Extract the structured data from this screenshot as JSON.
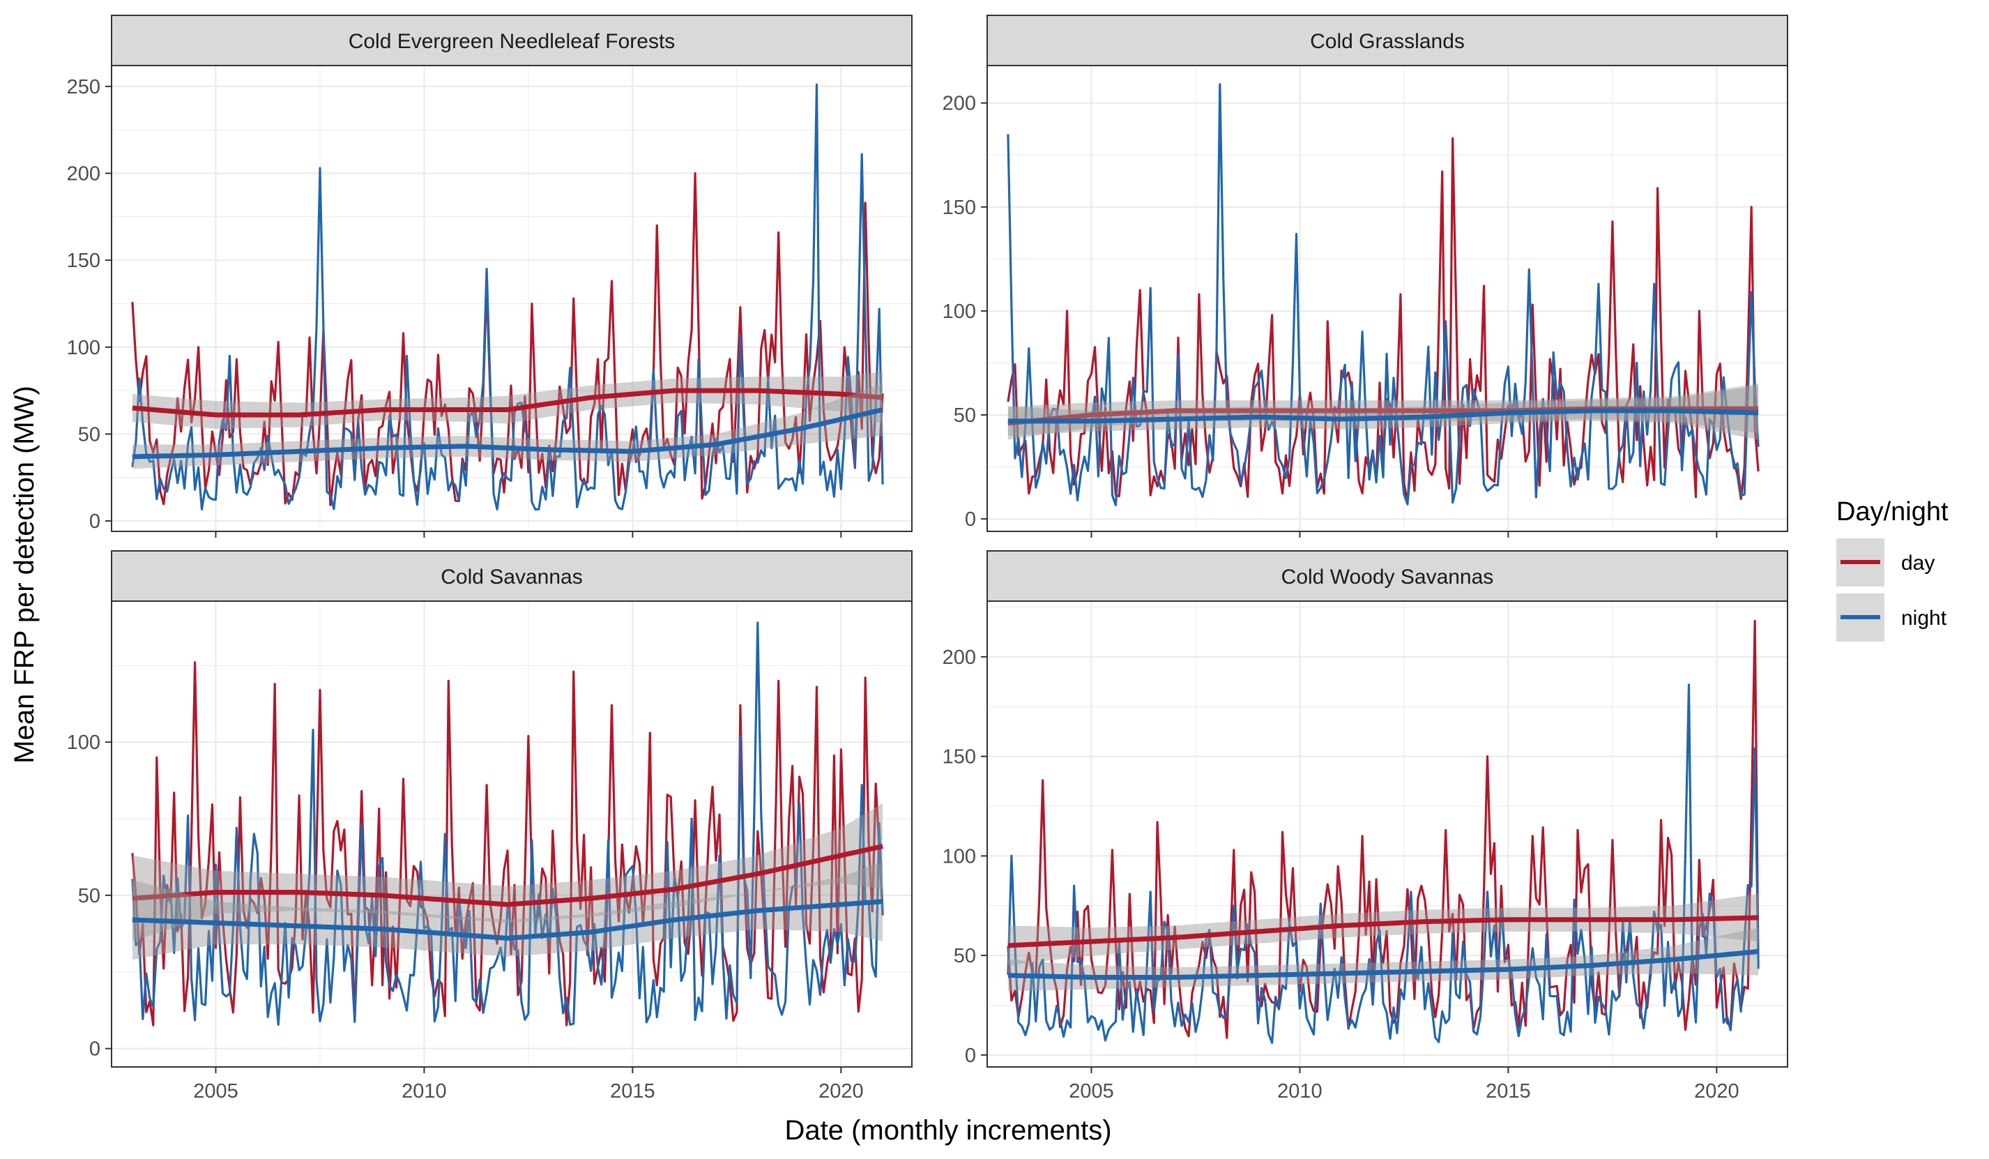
{
  "chart_data": {
    "type": "line",
    "xlabel": "Date (monthly increments)",
    "ylabel": "Mean FRP per detection (MW)",
    "x_ticks": [
      2005,
      2010,
      2015,
      2020
    ],
    "xlim": [
      2002.5,
      2021.7
    ],
    "legend": {
      "title": "Day/night",
      "position": "right",
      "entries": [
        {
          "label": "day",
          "color": "#B2182B"
        },
        {
          "label": "night",
          "color": "#2166AC"
        }
      ]
    },
    "colors": {
      "day": "#B2182B",
      "night": "#2166AC",
      "band": "#999999",
      "strip": "#d9d9d9"
    },
    "grid": true,
    "panels": [
      {
        "title": "Cold Evergreen Needleleaf Forests",
        "ylim": [
          -6,
          262
        ],
        "y_ticks": [
          0,
          50,
          100,
          150,
          200,
          250
        ],
        "series": [
          {
            "name": "day",
            "peaks": [
              [
                2003.0,
                126
              ],
              [
                2004.6,
                100
              ],
              [
                2005.5,
                93
              ],
              [
                2006.5,
                103
              ],
              [
                2007.6,
                110
              ],
              [
                2009.5,
                108
              ],
              [
                2011.5,
                135
              ],
              [
                2012.6,
                125
              ],
              [
                2013.6,
                128
              ],
              [
                2014.5,
                138
              ],
              [
                2015.6,
                170
              ],
              [
                2016.5,
                200
              ],
              [
                2017.6,
                123
              ],
              [
                2018.5,
                166
              ],
              [
                2019.5,
                115
              ],
              [
                2020.6,
                183
              ]
            ],
            "smooth": [
              [
                2003.0,
                65
              ],
              [
                2005.0,
                61
              ],
              [
                2007.0,
                61
              ],
              [
                2009.0,
                64
              ],
              [
                2011.0,
                64
              ],
              [
                2012.0,
                64
              ],
              [
                2014.0,
                71
              ],
              [
                2016.0,
                75
              ],
              [
                2018.0,
                75
              ],
              [
                2020.0,
                73
              ],
              [
                2021.0,
                71
              ]
            ],
            "band": [
              8,
              8,
              7,
              6,
              7,
              8,
              7,
              7,
              8,
              10,
              15
            ]
          },
          {
            "name": "night",
            "peaks": [
              [
                2003.2,
                82
              ],
              [
                2005.3,
                95
              ],
              [
                2007.5,
                203
              ],
              [
                2009.6,
                95
              ],
              [
                2011.5,
                145
              ],
              [
                2013.5,
                88
              ],
              [
                2015.5,
                87
              ],
              [
                2016.6,
                93
              ],
              [
                2017.6,
                107
              ],
              [
                2019.4,
                251
              ],
              [
                2020.5,
                211
              ],
              [
                2020.9,
                122
              ]
            ],
            "smooth": [
              [
                2003.0,
                37
              ],
              [
                2005.0,
                38
              ],
              [
                2007.0,
                40
              ],
              [
                2009.0,
                42
              ],
              [
                2011.0,
                43
              ],
              [
                2013.0,
                41
              ],
              [
                2015.0,
                40
              ],
              [
                2017.0,
                44
              ],
              [
                2019.0,
                53
              ],
              [
                2021.0,
                64
              ]
            ],
            "band": [
              7,
              6,
              6,
              6,
              6,
              6,
              6,
              6,
              9,
              15
            ]
          }
        ]
      },
      {
        "title": "Cold Grasslands",
        "ylim": [
          -6,
          218
        ],
        "y_ticks": [
          0,
          50,
          100,
          150,
          200
        ],
        "series": [
          {
            "name": "day",
            "peaks": [
              [
                2004.4,
                100
              ],
              [
                2006.2,
                110
              ],
              [
                2007.6,
                108
              ],
              [
                2009.3,
                98
              ],
              [
                2010.7,
                95
              ],
              [
                2012.4,
                108
              ],
              [
                2013.4,
                167
              ],
              [
                2013.7,
                183
              ],
              [
                2014.4,
                112
              ],
              [
                2015.6,
                103
              ],
              [
                2017.5,
                143
              ],
              [
                2018.6,
                159
              ],
              [
                2019.6,
                100
              ],
              [
                2020.8,
                150
              ]
            ],
            "smooth": [
              [
                2003.0,
                46
              ],
              [
                2005.0,
                50
              ],
              [
                2007.0,
                52
              ],
              [
                2009.0,
                52
              ],
              [
                2011.0,
                52
              ],
              [
                2013.0,
                52
              ],
              [
                2015.0,
                52
              ],
              [
                2017.0,
                53
              ],
              [
                2019.0,
                53
              ],
              [
                2021.0,
                53
              ]
            ],
            "band": [
              8,
              6,
              5,
              5,
              5,
              5,
              5,
              5,
              6,
              12
            ]
          },
          {
            "name": "night",
            "peaks": [
              [
                2003.0,
                185
              ],
              [
                2003.5,
                82
              ],
              [
                2005.4,
                87
              ],
              [
                2006.4,
                111
              ],
              [
                2008.1,
                209
              ],
              [
                2009.9,
                137
              ],
              [
                2011.5,
                90
              ],
              [
                2013.5,
                95
              ],
              [
                2015.5,
                120
              ],
              [
                2017.2,
                113
              ],
              [
                2018.5,
                113
              ],
              [
                2020.8,
                109
              ]
            ],
            "smooth": [
              [
                2003.0,
                47
              ],
              [
                2005.0,
                47
              ],
              [
                2007.0,
                48
              ],
              [
                2009.0,
                49
              ],
              [
                2011.0,
                48
              ],
              [
                2013.0,
                49
              ],
              [
                2015.0,
                51
              ],
              [
                2017.0,
                52
              ],
              [
                2019.0,
                52
              ],
              [
                2021.0,
                51
              ]
            ],
            "band": [
              7,
              5,
              5,
              5,
              5,
              5,
              5,
              5,
              6,
              13
            ]
          }
        ]
      },
      {
        "title": "Cold Savannas",
        "ylim": [
          -6,
          146
        ],
        "y_ticks": [
          0,
          50,
          100
        ],
        "series": [
          {
            "name": "day",
            "peaks": [
              [
                2003.6,
                95
              ],
              [
                2004.5,
                126
              ],
              [
                2005.6,
                82
              ],
              [
                2006.4,
                119
              ],
              [
                2007.5,
                117
              ],
              [
                2008.5,
                84
              ],
              [
                2009.5,
                88
              ],
              [
                2010.6,
                120
              ],
              [
                2011.5,
                86
              ],
              [
                2012.5,
                102
              ],
              [
                2013.6,
                123
              ],
              [
                2014.5,
                112
              ],
              [
                2015.4,
                103
              ],
              [
                2016.5,
                81
              ],
              [
                2017.6,
                112
              ],
              [
                2018.5,
                120
              ],
              [
                2019.4,
                118
              ],
              [
                2020.6,
                121
              ]
            ],
            "smooth": [
              [
                2003.0,
                49
              ],
              [
                2005.0,
                51
              ],
              [
                2007.0,
                51
              ],
              [
                2009.0,
                50
              ],
              [
                2011.0,
                48
              ],
              [
                2012.0,
                47
              ],
              [
                2014.0,
                49
              ],
              [
                2016.0,
                52
              ],
              [
                2018.0,
                57
              ],
              [
                2020.0,
                63
              ],
              [
                2021.0,
                66
              ]
            ],
            "band": [
              14,
              7,
              6,
              6,
              6,
              6,
              6,
              6,
              6,
              9,
              14
            ]
          },
          {
            "name": "night",
            "peaks": [
              [
                2004.3,
                76
              ],
              [
                2005.5,
                72
              ],
              [
                2007.3,
                104
              ],
              [
                2008.5,
                73
              ],
              [
                2010.5,
                70
              ],
              [
                2012.6,
                68
              ],
              [
                2014.4,
                68
              ],
              [
                2016.4,
                75
              ],
              [
                2017.6,
                102
              ],
              [
                2018.0,
                139
              ],
              [
                2019.0,
                80
              ],
              [
                2020.5,
                86
              ]
            ],
            "smooth": [
              [
                2003.0,
                42
              ],
              [
                2005.0,
                41
              ],
              [
                2007.0,
                40
              ],
              [
                2009.0,
                39
              ],
              [
                2011.0,
                37
              ],
              [
                2012.0,
                36
              ],
              [
                2014.0,
                38
              ],
              [
                2016.0,
                42
              ],
              [
                2018.0,
                45
              ],
              [
                2020.0,
                47
              ],
              [
                2021.0,
                48
              ]
            ],
            "band": [
              13,
              7,
              6,
              6,
              6,
              6,
              6,
              6,
              6,
              9,
              13
            ]
          }
        ]
      },
      {
        "title": "Cold Woody Savannas",
        "ylim": [
          -6,
          228
        ],
        "y_ticks": [
          0,
          50,
          100,
          150,
          200
        ],
        "series": [
          {
            "name": "day",
            "peaks": [
              [
                2003.8,
                138
              ],
              [
                2005.5,
                103
              ],
              [
                2006.6,
                117
              ],
              [
                2008.4,
                103
              ],
              [
                2009.6,
                112
              ],
              [
                2011.5,
                110
              ],
              [
                2013.5,
                113
              ],
              [
                2014.5,
                150
              ],
              [
                2015.6,
                110
              ],
              [
                2016.7,
                113
              ],
              [
                2017.5,
                108
              ],
              [
                2018.7,
                118
              ],
              [
                2019.6,
                98
              ],
              [
                2020.9,
                218
              ]
            ],
            "smooth": [
              [
                2003.0,
                55
              ],
              [
                2005.0,
                57
              ],
              [
                2007.0,
                59
              ],
              [
                2009.0,
                62
              ],
              [
                2011.0,
                65
              ],
              [
                2013.0,
                67
              ],
              [
                2015.0,
                68
              ],
              [
                2017.0,
                68
              ],
              [
                2019.0,
                68
              ],
              [
                2021.0,
                69
              ]
            ],
            "band": [
              10,
              7,
              6,
              6,
              6,
              6,
              6,
              6,
              7,
              12
            ]
          },
          {
            "name": "night",
            "peaks": [
              [
                2003.1,
                100
              ],
              [
                2004.6,
                85
              ],
              [
                2006.4,
                82
              ],
              [
                2008.4,
                75
              ],
              [
                2010.5,
                76
              ],
              [
                2012.7,
                82
              ],
              [
                2014.5,
                82
              ],
              [
                2016.6,
                78
              ],
              [
                2018.5,
                72
              ],
              [
                2019.3,
                186
              ],
              [
                2020.9,
                154
              ]
            ],
            "smooth": [
              [
                2003.0,
                40
              ],
              [
                2005.0,
                39
              ],
              [
                2007.0,
                39
              ],
              [
                2009.0,
                40
              ],
              [
                2011.0,
                41
              ],
              [
                2013.0,
                42
              ],
              [
                2015.0,
                43
              ],
              [
                2017.0,
                45
              ],
              [
                2019.0,
                48
              ],
              [
                2021.0,
                52
              ]
            ],
            "band": [
              8,
              6,
              5,
              5,
              5,
              5,
              5,
              5,
              7,
              12
            ]
          }
        ]
      }
    ]
  }
}
